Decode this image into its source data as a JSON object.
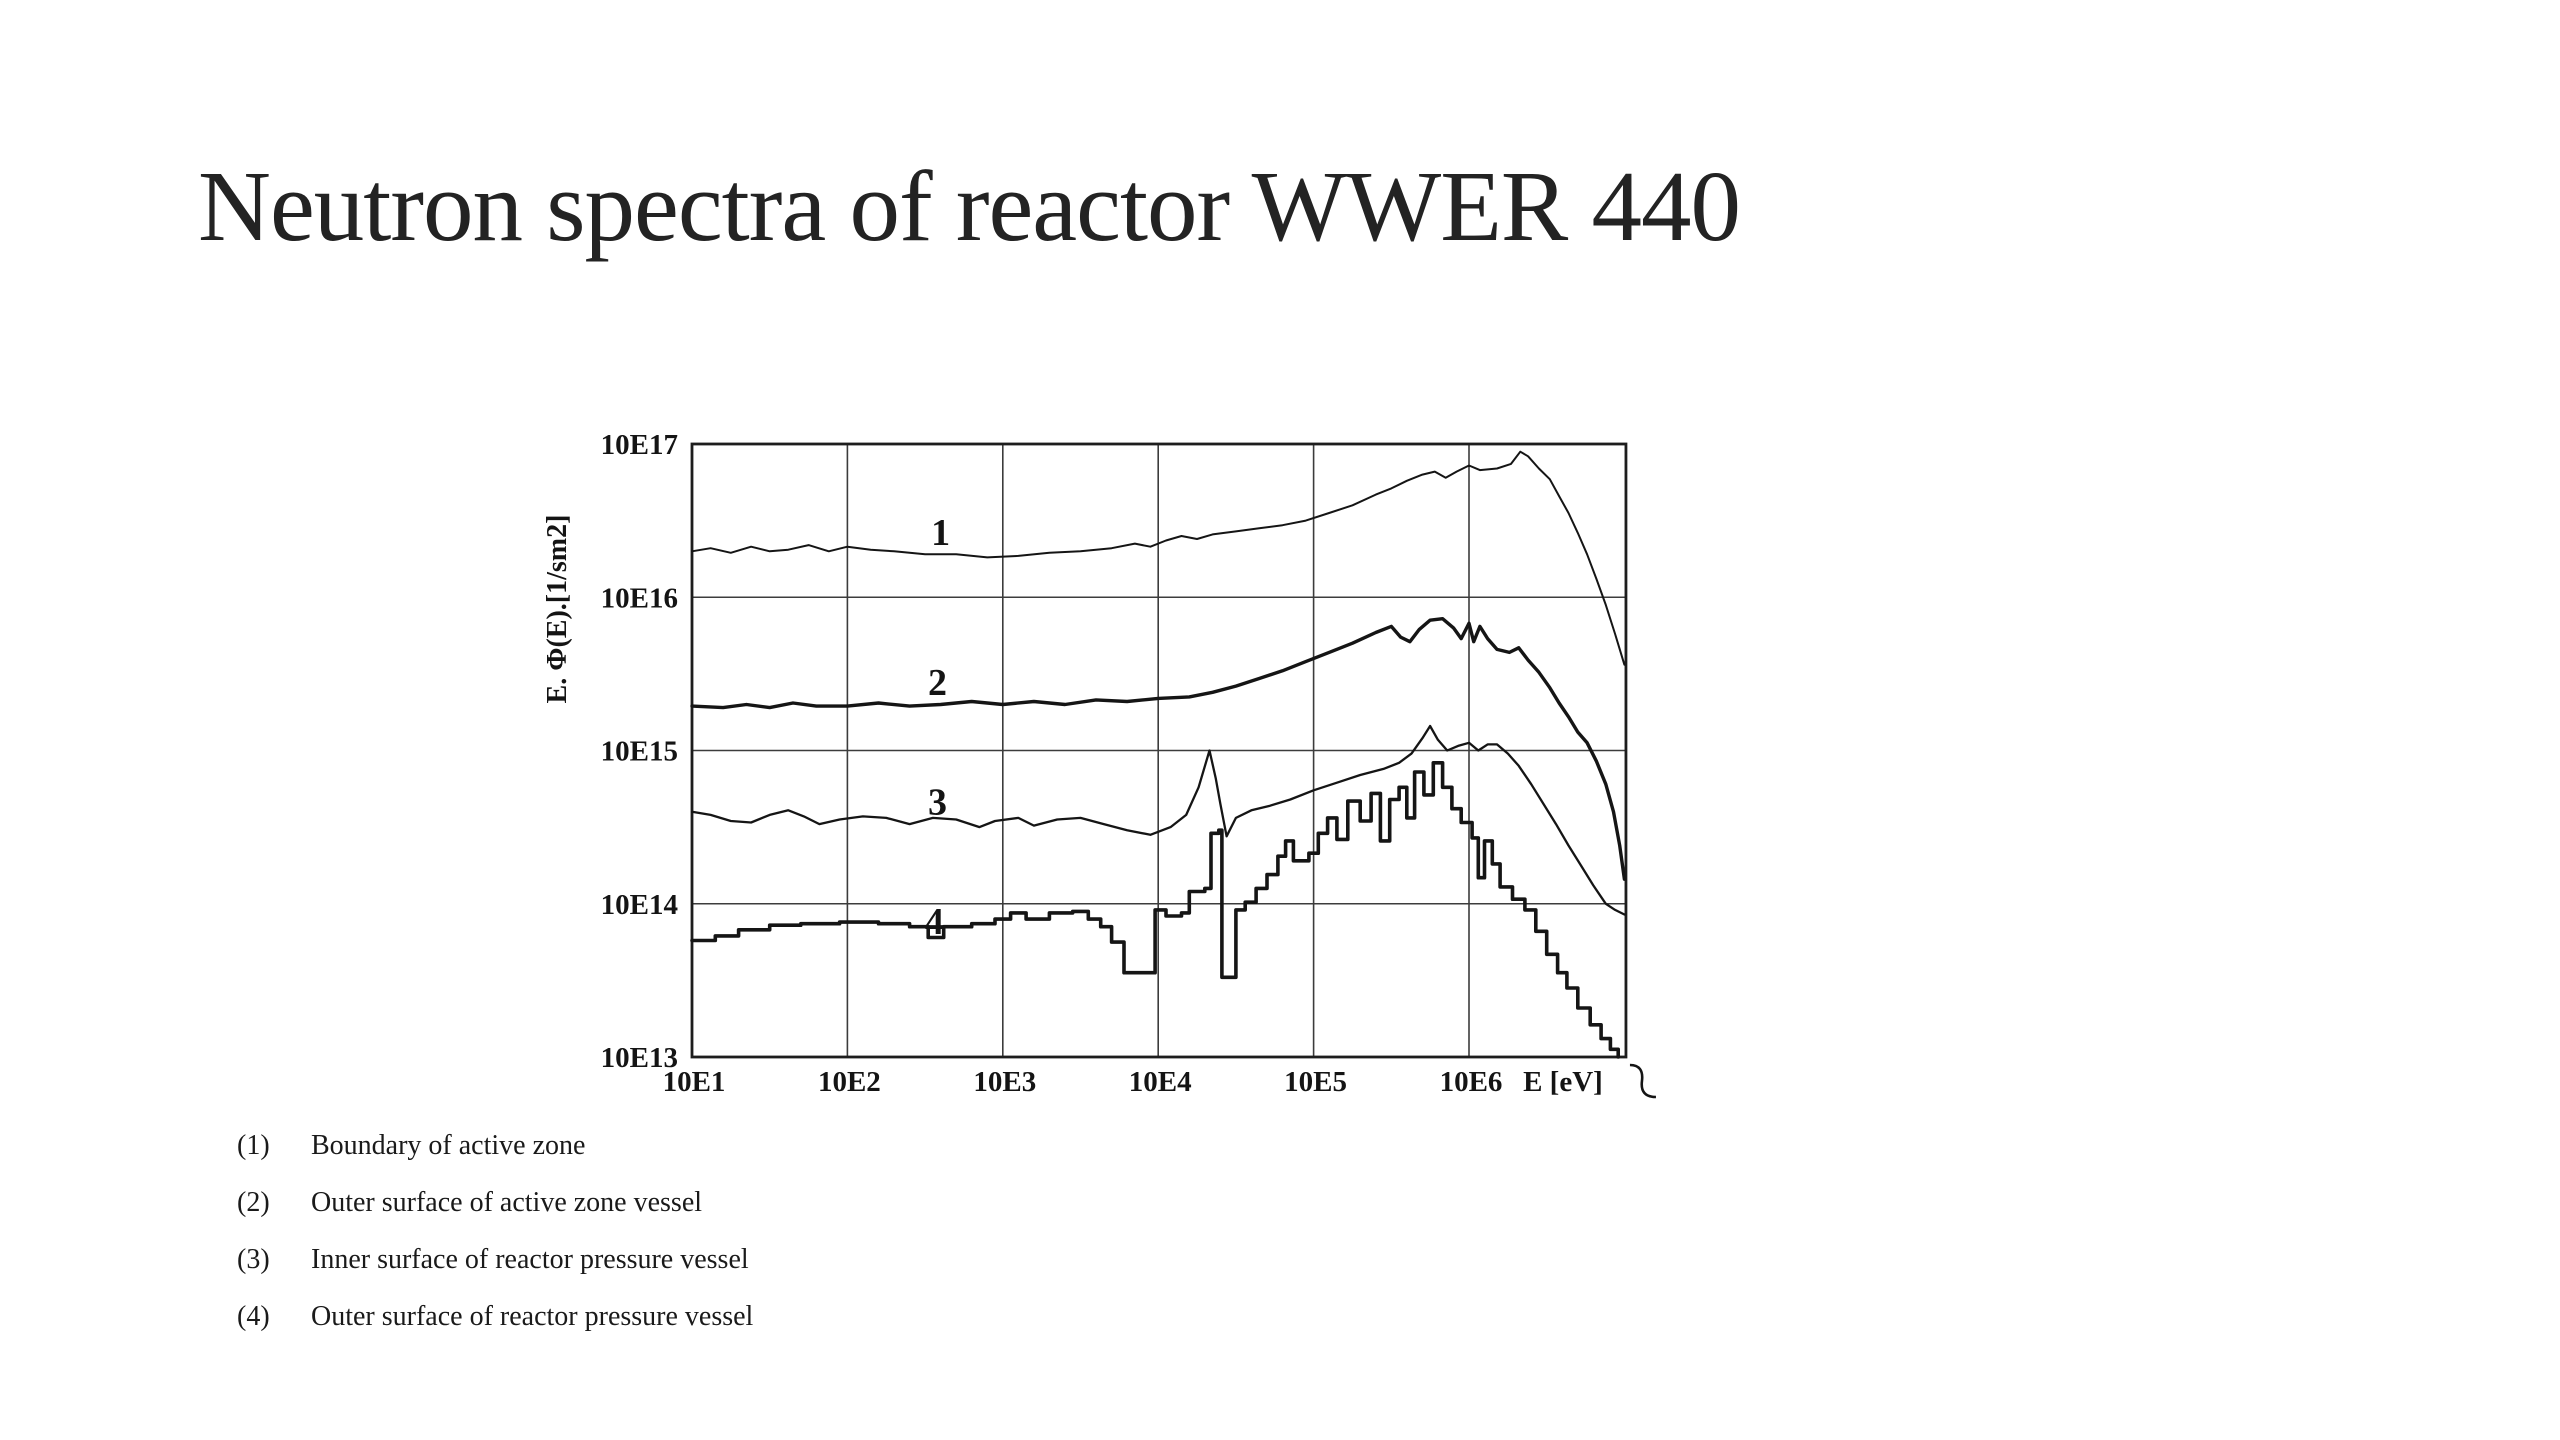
{
  "slide": {
    "title": "Neutron spectra of reactor WWER 440"
  },
  "legend": {
    "items": [
      {
        "num": "(1)",
        "text": "Boundary of active zone"
      },
      {
        "num": "(2)",
        "text": "Outer surface of active zone vessel"
      },
      {
        "num": "(3)",
        "text": "Inner surface of reactor pressure vessel"
      },
      {
        "num": "(4)",
        "text": "Outer surface of reactor pressure vessel"
      }
    ]
  },
  "chart_data": {
    "type": "line",
    "title": "",
    "xlabel": "E [eV]",
    "ylabel": "E. Φ(E).[1/sm2]",
    "x_scale": "log10",
    "y_scale": "log10",
    "xlim_log10": [
      1,
      7.01
    ],
    "ylim_log10": [
      13,
      17
    ],
    "grid": true,
    "x_ticks": [
      {
        "label": "10E1",
        "log": 1
      },
      {
        "label": "10E2",
        "log": 2
      },
      {
        "label": "10E3",
        "log": 3
      },
      {
        "label": "10E4",
        "log": 4
      },
      {
        "label": "10E5",
        "log": 5
      },
      {
        "label": "10E6",
        "log": 6
      }
    ],
    "y_ticks": [
      {
        "label": "10E17",
        "log": 17
      },
      {
        "label": "10E16",
        "log": 16
      },
      {
        "label": "10E15",
        "log": 15
      },
      {
        "label": "10E14",
        "log": 14
      },
      {
        "label": "10E13",
        "log": 13
      }
    ],
    "x_axis_unit_label": "E [eV]",
    "curve_labels": [
      {
        "text": "1",
        "x_log": 2.6,
        "y_log": 16.42
      },
      {
        "text": "2",
        "x_log": 2.58,
        "y_log": 15.44
      },
      {
        "text": "3",
        "x_log": 2.58,
        "y_log": 14.66
      },
      {
        "text": "4",
        "x_log": 2.56,
        "y_log": 13.88
      }
    ],
    "series": [
      {
        "name": "1 - Boundary of active zone",
        "render": "linear",
        "stroke_width": 2,
        "points_log10": [
          [
            1.0,
            16.3
          ],
          [
            1.12,
            16.32
          ],
          [
            1.25,
            16.29
          ],
          [
            1.38,
            16.33
          ],
          [
            1.5,
            16.3
          ],
          [
            1.62,
            16.31
          ],
          [
            1.75,
            16.34
          ],
          [
            1.88,
            16.3
          ],
          [
            2.0,
            16.33
          ],
          [
            2.15,
            16.31
          ],
          [
            2.3,
            16.3
          ],
          [
            2.5,
            16.28
          ],
          [
            2.7,
            16.28
          ],
          [
            2.9,
            16.26
          ],
          [
            3.1,
            16.27
          ],
          [
            3.3,
            16.29
          ],
          [
            3.5,
            16.3
          ],
          [
            3.7,
            16.32
          ],
          [
            3.85,
            16.35
          ],
          [
            3.95,
            16.33
          ],
          [
            4.05,
            16.37
          ],
          [
            4.15,
            16.4
          ],
          [
            4.25,
            16.38
          ],
          [
            4.35,
            16.41
          ],
          [
            4.5,
            16.43
          ],
          [
            4.65,
            16.45
          ],
          [
            4.8,
            16.47
          ],
          [
            4.95,
            16.5
          ],
          [
            5.1,
            16.55
          ],
          [
            5.25,
            16.6
          ],
          [
            5.4,
            16.67
          ],
          [
            5.5,
            16.71
          ],
          [
            5.6,
            16.76
          ],
          [
            5.7,
            16.8
          ],
          [
            5.78,
            16.82
          ],
          [
            5.85,
            16.78
          ],
          [
            5.92,
            16.82
          ],
          [
            6.0,
            16.86
          ],
          [
            6.07,
            16.83
          ],
          [
            6.18,
            16.84
          ],
          [
            6.27,
            16.87
          ],
          [
            6.33,
            16.95
          ],
          [
            6.38,
            16.92
          ],
          [
            6.45,
            16.84
          ],
          [
            6.52,
            16.77
          ],
          [
            6.58,
            16.66
          ],
          [
            6.64,
            16.55
          ],
          [
            6.7,
            16.42
          ],
          [
            6.76,
            16.28
          ],
          [
            6.82,
            16.12
          ],
          [
            6.88,
            15.95
          ],
          [
            6.94,
            15.76
          ],
          [
            7.0,
            15.56
          ]
        ]
      },
      {
        "name": "2 - Outer surface of active zone vessel",
        "render": "linear",
        "stroke_width": 3.4,
        "points_log10": [
          [
            1.0,
            15.29
          ],
          [
            1.2,
            15.28
          ],
          [
            1.35,
            15.3
          ],
          [
            1.5,
            15.28
          ],
          [
            1.65,
            15.31
          ],
          [
            1.8,
            15.29
          ],
          [
            2.0,
            15.29
          ],
          [
            2.2,
            15.31
          ],
          [
            2.4,
            15.29
          ],
          [
            2.6,
            15.3
          ],
          [
            2.8,
            15.32
          ],
          [
            3.0,
            15.3
          ],
          [
            3.2,
            15.32
          ],
          [
            3.4,
            15.3
          ],
          [
            3.6,
            15.33
          ],
          [
            3.8,
            15.32
          ],
          [
            4.0,
            15.34
          ],
          [
            4.2,
            15.35
          ],
          [
            4.35,
            15.38
          ],
          [
            4.5,
            15.42
          ],
          [
            4.65,
            15.47
          ],
          [
            4.8,
            15.52
          ],
          [
            4.95,
            15.58
          ],
          [
            5.1,
            15.64
          ],
          [
            5.25,
            15.7
          ],
          [
            5.4,
            15.77
          ],
          [
            5.5,
            15.81
          ],
          [
            5.56,
            15.74
          ],
          [
            5.62,
            15.71
          ],
          [
            5.68,
            15.79
          ],
          [
            5.75,
            15.85
          ],
          [
            5.83,
            15.86
          ],
          [
            5.9,
            15.8
          ],
          [
            5.95,
            15.73
          ],
          [
            6.0,
            15.83
          ],
          [
            6.03,
            15.71
          ],
          [
            6.07,
            15.81
          ],
          [
            6.12,
            15.73
          ],
          [
            6.18,
            15.66
          ],
          [
            6.26,
            15.64
          ],
          [
            6.32,
            15.67
          ],
          [
            6.38,
            15.59
          ],
          [
            6.45,
            15.51
          ],
          [
            6.52,
            15.41
          ],
          [
            6.58,
            15.31
          ],
          [
            6.64,
            15.22
          ],
          [
            6.7,
            15.12
          ],
          [
            6.76,
            15.05
          ],
          [
            6.82,
            14.93
          ],
          [
            6.88,
            14.78
          ],
          [
            6.93,
            14.6
          ],
          [
            6.97,
            14.38
          ],
          [
            7.0,
            14.16
          ]
        ]
      },
      {
        "name": "3 - Inner surface of reactor pressure vessel",
        "render": "linear",
        "stroke_width": 2.3,
        "points_log10": [
          [
            1.0,
            14.6
          ],
          [
            1.12,
            14.58
          ],
          [
            1.25,
            14.54
          ],
          [
            1.38,
            14.53
          ],
          [
            1.5,
            14.58
          ],
          [
            1.62,
            14.61
          ],
          [
            1.72,
            14.57
          ],
          [
            1.82,
            14.52
          ],
          [
            1.95,
            14.55
          ],
          [
            2.1,
            14.57
          ],
          [
            2.25,
            14.56
          ],
          [
            2.4,
            14.52
          ],
          [
            2.55,
            14.56
          ],
          [
            2.7,
            14.55
          ],
          [
            2.85,
            14.5
          ],
          [
            2.95,
            14.54
          ],
          [
            3.1,
            14.56
          ],
          [
            3.2,
            14.51
          ],
          [
            3.35,
            14.55
          ],
          [
            3.5,
            14.56
          ],
          [
            3.65,
            14.52
          ],
          [
            3.8,
            14.48
          ],
          [
            3.95,
            14.45
          ],
          [
            4.08,
            14.5
          ],
          [
            4.18,
            14.58
          ],
          [
            4.26,
            14.76
          ],
          [
            4.33,
            15.0
          ],
          [
            4.37,
            14.82
          ],
          [
            4.4,
            14.65
          ],
          [
            4.44,
            14.44
          ],
          [
            4.5,
            14.56
          ],
          [
            4.6,
            14.61
          ],
          [
            4.72,
            14.64
          ],
          [
            4.85,
            14.68
          ],
          [
            5.0,
            14.74
          ],
          [
            5.15,
            14.79
          ],
          [
            5.3,
            14.84
          ],
          [
            5.45,
            14.88
          ],
          [
            5.55,
            14.92
          ],
          [
            5.63,
            14.98
          ],
          [
            5.7,
            15.08
          ],
          [
            5.75,
            15.16
          ],
          [
            5.8,
            15.07
          ],
          [
            5.86,
            15.0
          ],
          [
            5.93,
            15.03
          ],
          [
            6.0,
            15.05
          ],
          [
            6.06,
            15.0
          ],
          [
            6.12,
            15.04
          ],
          [
            6.18,
            15.04
          ],
          [
            6.25,
            14.98
          ],
          [
            6.32,
            14.9
          ],
          [
            6.4,
            14.78
          ],
          [
            6.48,
            14.65
          ],
          [
            6.56,
            14.52
          ],
          [
            6.64,
            14.38
          ],
          [
            6.72,
            14.25
          ],
          [
            6.8,
            14.12
          ],
          [
            6.88,
            14.0
          ],
          [
            6.94,
            13.96
          ],
          [
            7.0,
            13.93
          ]
        ]
      },
      {
        "name": "4 - Outer surface of reactor pressure vessel",
        "render": "step",
        "stroke_width": 3.6,
        "points_log10": [
          [
            1.0,
            13.76
          ],
          [
            1.15,
            13.79
          ],
          [
            1.3,
            13.83
          ],
          [
            1.5,
            13.86
          ],
          [
            1.7,
            13.87
          ],
          [
            1.95,
            13.88
          ],
          [
            2.2,
            13.87
          ],
          [
            2.4,
            13.85
          ],
          [
            2.52,
            13.78
          ],
          [
            2.62,
            13.85
          ],
          [
            2.8,
            13.87
          ],
          [
            2.95,
            13.9
          ],
          [
            3.05,
            13.94
          ],
          [
            3.15,
            13.9
          ],
          [
            3.3,
            13.94
          ],
          [
            3.45,
            13.95
          ],
          [
            3.55,
            13.9
          ],
          [
            3.63,
            13.85
          ],
          [
            3.7,
            13.75
          ],
          [
            3.78,
            13.55
          ],
          [
            3.95,
            13.55
          ],
          [
            3.98,
            13.96
          ],
          [
            4.05,
            13.92
          ],
          [
            4.15,
            13.94
          ],
          [
            4.2,
            14.08
          ],
          [
            4.3,
            14.1
          ],
          [
            4.34,
            14.46
          ],
          [
            4.39,
            14.48
          ],
          [
            4.41,
            13.52
          ],
          [
            4.47,
            13.52
          ],
          [
            4.5,
            13.96
          ],
          [
            4.56,
            14.01
          ],
          [
            4.63,
            14.1
          ],
          [
            4.7,
            14.19
          ],
          [
            4.77,
            14.31
          ],
          [
            4.82,
            14.41
          ],
          [
            4.87,
            14.28
          ],
          [
            4.97,
            14.33
          ],
          [
            5.03,
            14.46
          ],
          [
            5.09,
            14.56
          ],
          [
            5.15,
            14.42
          ],
          [
            5.22,
            14.67
          ],
          [
            5.3,
            14.54
          ],
          [
            5.37,
            14.72
          ],
          [
            5.43,
            14.41
          ],
          [
            5.49,
            14.68
          ],
          [
            5.55,
            14.76
          ],
          [
            5.6,
            14.56
          ],
          [
            5.65,
            14.86
          ],
          [
            5.71,
            14.71
          ],
          [
            5.77,
            14.92
          ],
          [
            5.83,
            14.76
          ],
          [
            5.89,
            14.62
          ],
          [
            5.95,
            14.53
          ],
          [
            6.02,
            14.43
          ],
          [
            6.06,
            14.17
          ],
          [
            6.1,
            14.41
          ],
          [
            6.15,
            14.26
          ],
          [
            6.2,
            14.11
          ],
          [
            6.28,
            14.03
          ],
          [
            6.36,
            13.96
          ],
          [
            6.43,
            13.82
          ],
          [
            6.5,
            13.67
          ],
          [
            6.57,
            13.55
          ],
          [
            6.63,
            13.45
          ],
          [
            6.7,
            13.32
          ],
          [
            6.78,
            13.21
          ],
          [
            6.85,
            13.12
          ],
          [
            6.91,
            13.05
          ],
          [
            6.96,
            13.0
          ]
        ]
      }
    ]
  }
}
